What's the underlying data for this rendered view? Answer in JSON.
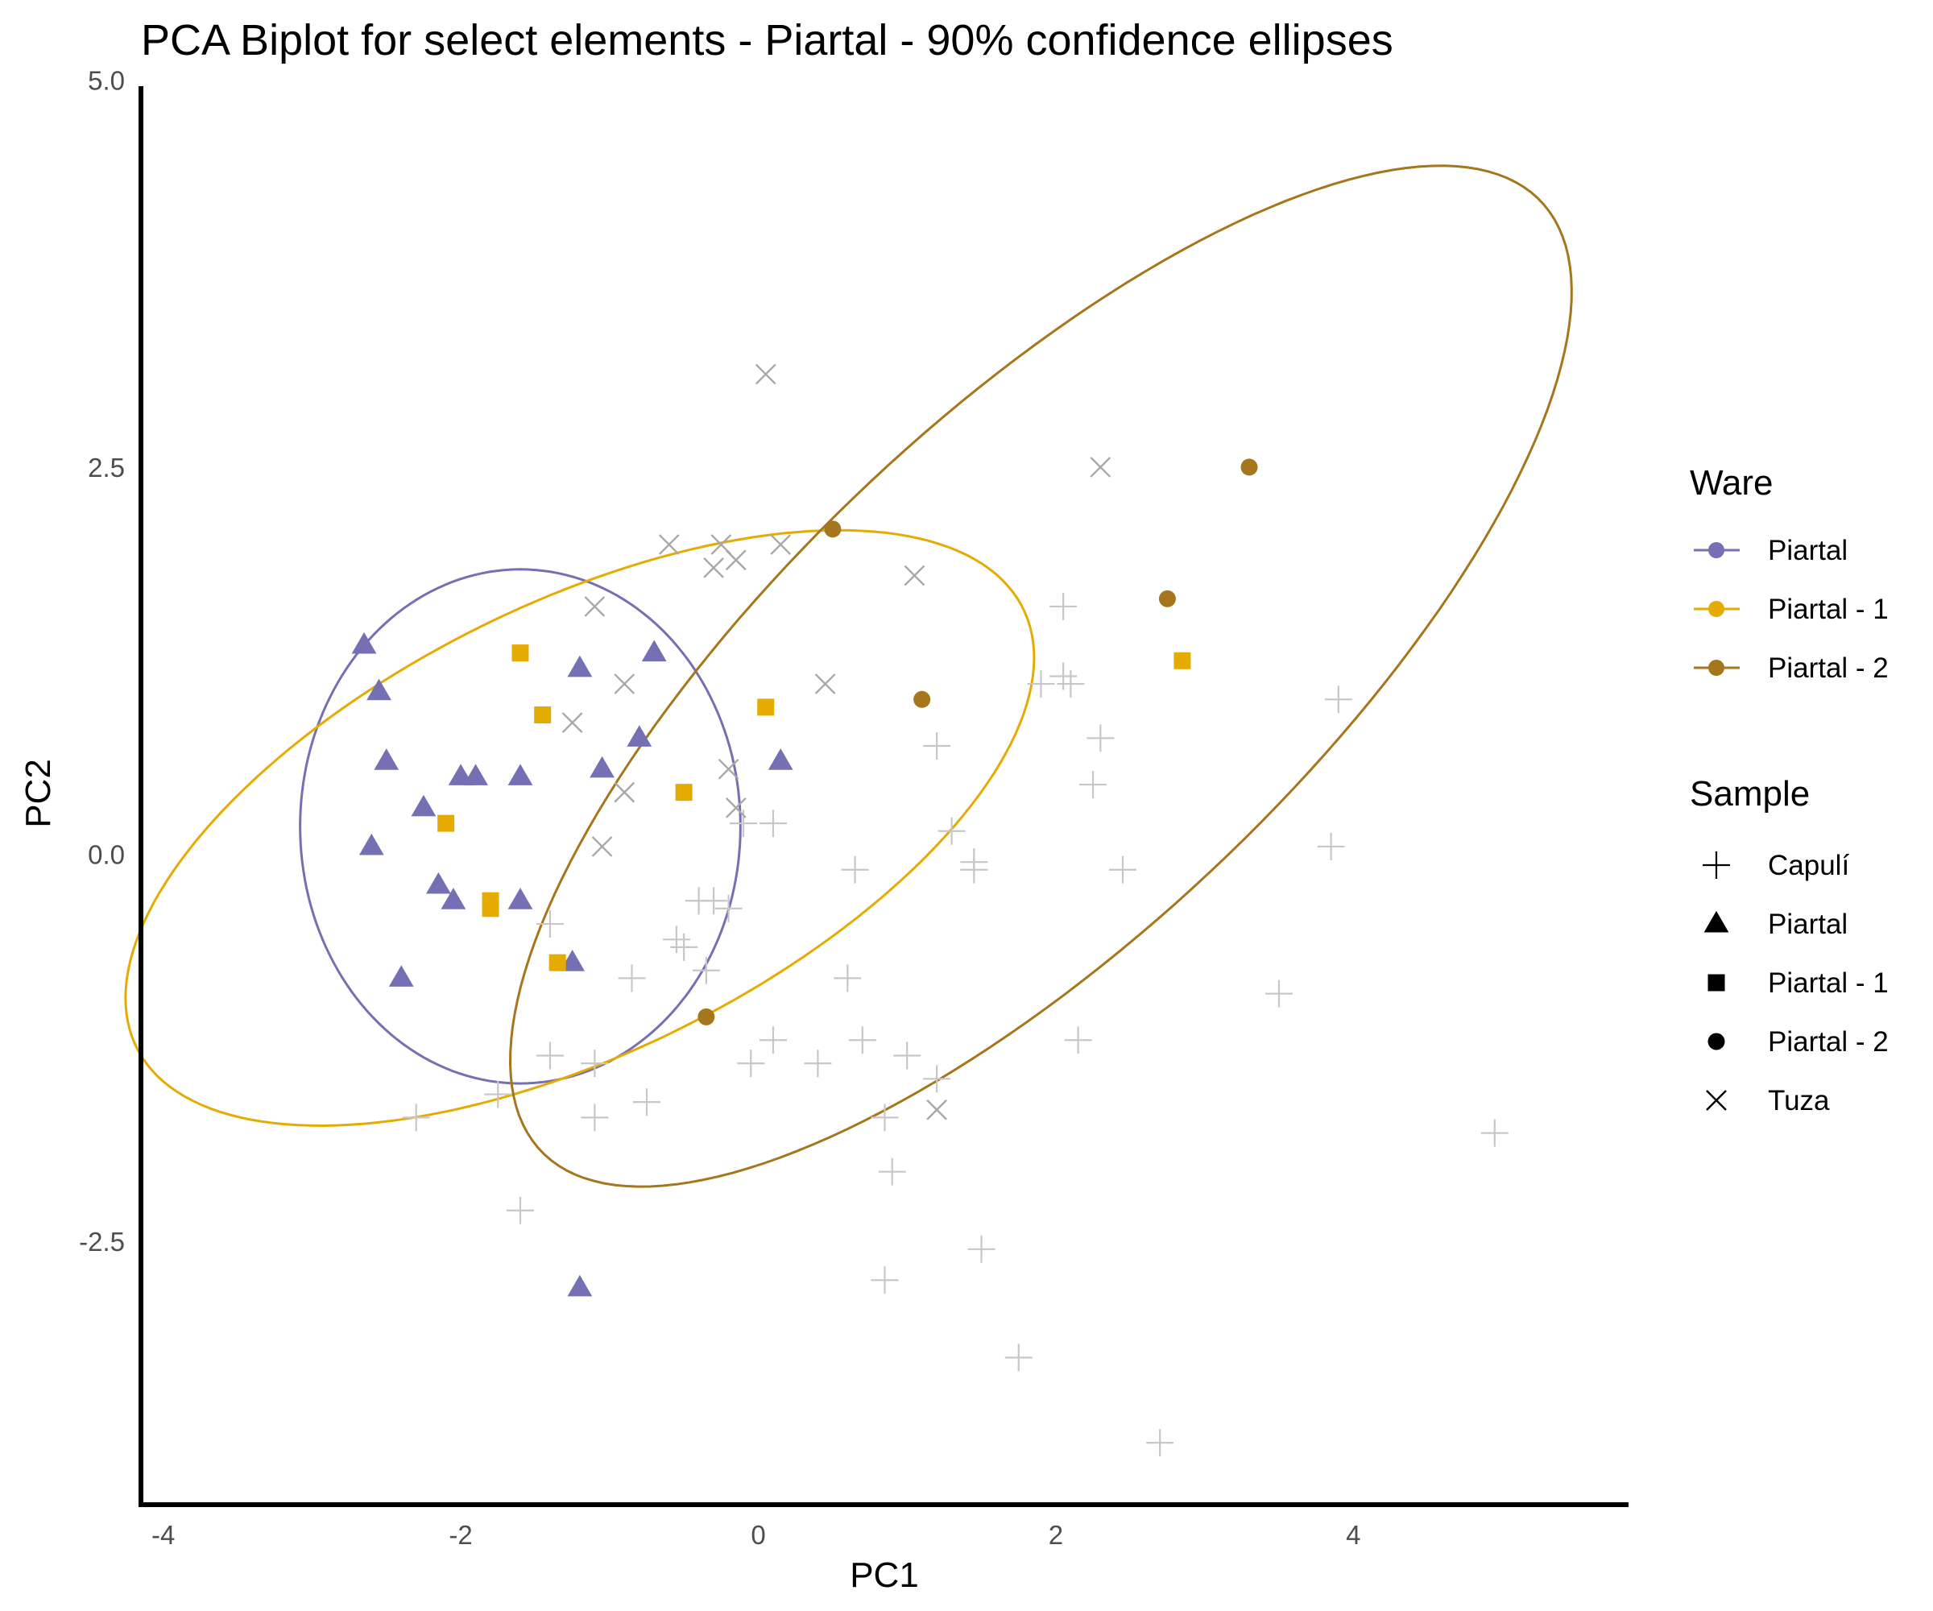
{
  "chart_data": {
    "type": "scatter",
    "title": "PCA Biplot for select elements - Piartal - 90% confidence ellipses",
    "xlabel": "PC1",
    "ylabel": "PC2",
    "xlim": [
      -4.15,
      5.85
    ],
    "ylim": [
      -4.2,
      4.96
    ],
    "x_ticks": [
      -4,
      -2,
      0,
      2,
      4
    ],
    "x_tick_labels": [
      "-4",
      "-2",
      "0",
      "2",
      "4"
    ],
    "y_ticks": [
      5,
      2.5,
      0,
      -2.5
    ],
    "y_tick_labels": [
      "5.0",
      "2.5",
      "0.0",
      "-2.5"
    ],
    "grid": false,
    "legend_position": "right",
    "legends": {
      "ware": {
        "title": "Ware",
        "items": [
          {
            "label": "Piartal",
            "color": "#7570b3"
          },
          {
            "label": "Piartal - 1",
            "color": "#e6ab02"
          },
          {
            "label": "Piartal - 2",
            "color": "#a6761d"
          }
        ]
      },
      "sample": {
        "title": "Sample",
        "items": [
          {
            "label": "Capulí",
            "shape": "plus"
          },
          {
            "label": "Piartal",
            "shape": "triangle"
          },
          {
            "label": "Piartal - 1",
            "shape": "square"
          },
          {
            "label": "Piartal - 2",
            "shape": "circle"
          },
          {
            "label": "Tuza",
            "shape": "cross"
          }
        ]
      }
    },
    "series": [
      {
        "name": "Capulí",
        "shape": "plus",
        "color": "#c7c7c7",
        "points": [
          [
            -1.4,
            -0.45
          ],
          [
            -1.4,
            -1.3
          ],
          [
            -1.1,
            -1.35
          ],
          [
            -1.75,
            -1.55
          ],
          [
            -2.3,
            -1.7
          ],
          [
            -1.1,
            -1.7
          ],
          [
            -0.75,
            -1.6
          ],
          [
            -0.85,
            -0.8
          ],
          [
            -1.6,
            -2.3
          ],
          [
            -0.55,
            -0.55
          ],
          [
            -0.5,
            -0.6
          ],
          [
            -0.4,
            -0.3
          ],
          [
            -0.3,
            -0.3
          ],
          [
            -0.2,
            -0.35
          ],
          [
            -0.35,
            -0.75
          ],
          [
            -0.1,
            0.2
          ],
          [
            0.1,
            0.2
          ],
          [
            -0.05,
            -1.35
          ],
          [
            0.1,
            -1.2
          ],
          [
            0.4,
            -1.35
          ],
          [
            0.6,
            -0.8
          ],
          [
            0.7,
            -1.2
          ],
          [
            0.65,
            -0.1
          ],
          [
            1.0,
            -1.3
          ],
          [
            1.2,
            -1.45
          ],
          [
            0.85,
            -1.7
          ],
          [
            0.9,
            -2.05
          ],
          [
            0.85,
            -2.75
          ],
          [
            1.2,
            0.7
          ],
          [
            1.3,
            0.15
          ],
          [
            1.45,
            -0.05
          ],
          [
            1.45,
            -0.1
          ],
          [
            1.5,
            -2.55
          ],
          [
            1.75,
            -3.25
          ],
          [
            1.9,
            1.1
          ],
          [
            2.05,
            1.15
          ],
          [
            2.1,
            1.1
          ],
          [
            2.05,
            1.6
          ],
          [
            2.3,
            0.75
          ],
          [
            2.25,
            0.45
          ],
          [
            2.45,
            -0.1
          ],
          [
            2.15,
            -1.2
          ],
          [
            2.7,
            -3.8
          ],
          [
            3.5,
            -0.9
          ],
          [
            3.85,
            0.05
          ],
          [
            3.9,
            1.0
          ],
          [
            4.95,
            -1.8
          ]
        ]
      },
      {
        "name": "Tuza",
        "shape": "cross",
        "color": "#a8a8a8",
        "points": [
          [
            0.05,
            3.1
          ],
          [
            2.3,
            2.5
          ],
          [
            -0.6,
            2.0
          ],
          [
            -0.25,
            2.0
          ],
          [
            0.15,
            2.0
          ],
          [
            -0.15,
            1.9
          ],
          [
            -0.3,
            1.85
          ],
          [
            1.05,
            1.8
          ],
          [
            -1.1,
            1.6
          ],
          [
            -0.9,
            1.1
          ],
          [
            0.45,
            1.1
          ],
          [
            -1.25,
            0.85
          ],
          [
            -0.2,
            0.55
          ],
          [
            -0.9,
            0.4
          ],
          [
            -0.15,
            0.3
          ],
          [
            -1.05,
            0.05
          ],
          [
            1.2,
            -1.65
          ]
        ]
      },
      {
        "name": "Piartal",
        "shape": "triangle",
        "color": "#7570b3",
        "points": [
          [
            -2.65,
            1.35
          ],
          [
            -2.55,
            1.05
          ],
          [
            -2.5,
            0.6
          ],
          [
            -2.25,
            0.3
          ],
          [
            -2.0,
            0.5
          ],
          [
            -1.9,
            0.5
          ],
          [
            -1.6,
            0.5
          ],
          [
            -2.6,
            0.05
          ],
          [
            -2.15,
            -0.2
          ],
          [
            -2.05,
            -0.3
          ],
          [
            -1.6,
            -0.3
          ],
          [
            -2.4,
            -0.8
          ],
          [
            -1.2,
            1.2
          ],
          [
            -1.05,
            0.55
          ],
          [
            -0.8,
            0.75
          ],
          [
            -0.7,
            1.3
          ],
          [
            0.15,
            0.6
          ],
          [
            -1.25,
            -0.7
          ],
          [
            -1.2,
            -2.8
          ]
        ]
      },
      {
        "name": "Piartal - 1",
        "shape": "square",
        "color": "#e6ab02",
        "points": [
          [
            -1.6,
            1.3
          ],
          [
            -1.45,
            0.9
          ],
          [
            -2.1,
            0.2
          ],
          [
            -1.8,
            -0.3
          ],
          [
            -1.8,
            -0.35
          ],
          [
            -1.35,
            -0.7
          ],
          [
            -0.5,
            0.4
          ],
          [
            0.05,
            0.95
          ],
          [
            2.85,
            1.25
          ]
        ]
      },
      {
        "name": "Piartal - 2",
        "shape": "circle",
        "color": "#a6761d",
        "points": [
          [
            0.5,
            2.1
          ],
          [
            1.1,
            1.0
          ],
          [
            2.75,
            1.65
          ],
          [
            3.3,
            2.5
          ],
          [
            -0.35,
            -1.05
          ]
        ]
      }
    ],
    "ellipses": [
      {
        "group": "Piartal",
        "color": "#7570b3",
        "cx": -1.6,
        "cy": 0.18,
        "a": 1.48,
        "b": 1.66,
        "angle_deg": 0
      },
      {
        "group": "Piartal - 1",
        "color": "#e6ab02",
        "cx": -1.2,
        "cy": 0.17,
        "a": 3.3,
        "b": 1.46,
        "angle_deg": 25
      },
      {
        "group": "Piartal - 2",
        "color": "#a6761d",
        "cx": 1.9,
        "cy": 1.15,
        "a": 4.55,
        "b": 1.7,
        "angle_deg": 42
      }
    ]
  }
}
